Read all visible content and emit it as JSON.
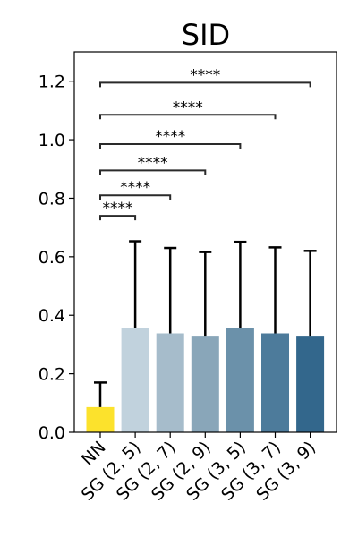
{
  "chart_data": {
    "type": "bar",
    "title": "SID",
    "xlabel": "",
    "ylabel": "",
    "categories": [
      "NN",
      "SG (2, 5)",
      "SG (2, 7)",
      "SG (2, 9)",
      "SG (3, 5)",
      "SG (3, 7)",
      "SG (3, 9)"
    ],
    "values": [
      0.086,
      0.355,
      0.338,
      0.33,
      0.355,
      0.338,
      0.33
    ],
    "errors": [
      0.084,
      0.298,
      0.292,
      0.286,
      0.296,
      0.294,
      0.29
    ],
    "colors": [
      "#fce22c",
      "#c1d2dd",
      "#a6bccb",
      "#89a6b9",
      "#6b91aa",
      "#4d7b9b",
      "#33678c"
    ],
    "ylim": [
      0,
      1.3
    ],
    "yticks": [
      0.0,
      0.2,
      0.4,
      0.6,
      0.8,
      1.0,
      1.2
    ],
    "ytick_labels": [
      "0.0",
      "0.2",
      "0.4",
      "0.6",
      "0.8",
      "1.0",
      "1.2"
    ],
    "grid": false,
    "annotations": [
      {
        "from": 0,
        "to": 1,
        "y": 0.74,
        "text": "****"
      },
      {
        "from": 0,
        "to": 2,
        "y": 0.81,
        "text": "****"
      },
      {
        "from": 0,
        "to": 3,
        "y": 0.895,
        "text": "****"
      },
      {
        "from": 0,
        "to": 4,
        "y": 0.985,
        "text": "****"
      },
      {
        "from": 0,
        "to": 5,
        "y": 1.085,
        "text": "****"
      },
      {
        "from": 0,
        "to": 6,
        "y": 1.195,
        "text": "****"
      }
    ]
  }
}
